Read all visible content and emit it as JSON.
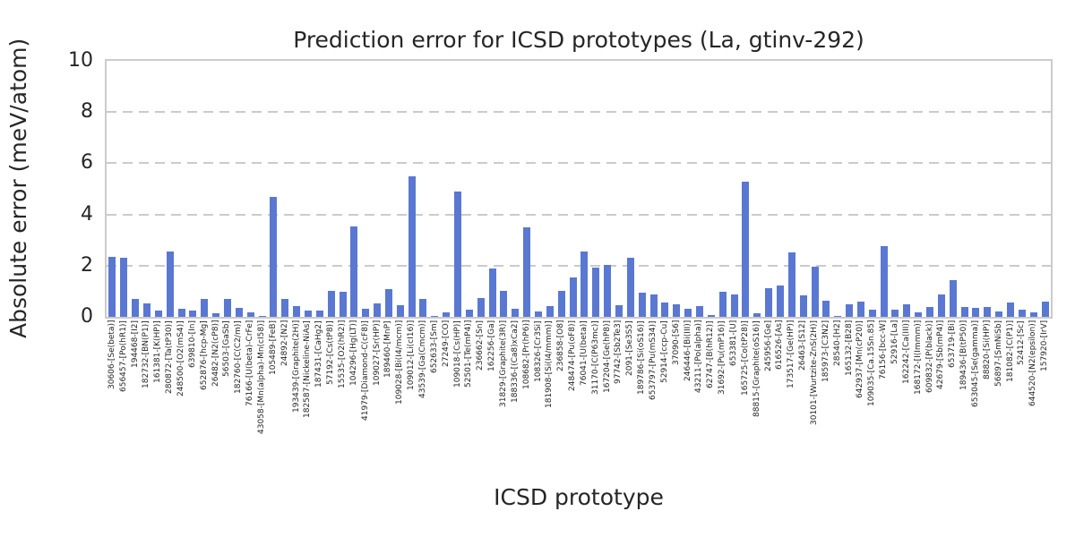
{
  "title": "Prediction error for ICSD prototypes (La, gtinv-292)",
  "colors": {
    "bar": "#5a78d2",
    "grid": "#cbcbcb",
    "spine": "#cbcbcb",
    "text": "#262626"
  },
  "chart_data": {
    "type": "bar",
    "title": "Prediction error for ICSD prototypes (La, gtinv-292)",
    "xlabel": "ICSD prototype",
    "ylabel": "Absolute error (meV/atom)",
    "ylim": [
      0,
      10
    ],
    "yticks": [
      0,
      2,
      4,
      6,
      8,
      10
    ],
    "grid": "horizontal-dashed",
    "legend": "none",
    "bar_color": "#5a78d2",
    "categories": [
      "30606-[Se(beta)]",
      "656457-[Po(hR1)]",
      "194468-[I2]",
      "182732-[BN(P1)]",
      "161381-[K(HP)]",
      "280872-[Ta(tP30)]",
      "248500-[O2(mS4)]",
      "639810-[In]",
      "652876-[hcp-Mg]",
      "26482-[N2(cP8)]",
      "56503-[GaSb]",
      "182760-[C(C2/m)]",
      "76166-[U(beta)-CrFe]",
      "43058-[Mn(alpha)-Mn(cI58)]",
      "105489-[FeB]",
      "24892-[N2]",
      "193439-[Graphite(2H)]",
      "182587-[Nickeline-NiAs]",
      "187431-[CaHg2]",
      "57192-[Cs(tP8)]",
      "15535-[O2(hR2)]",
      "104296-[Hg(LT)]",
      "41979-[Diamond-C(cF8)]",
      "109027-[Sr(HP)]",
      "189460-[MnP]",
      "109028-[Bi(I4/mcm)]",
      "109012-[Li(cI16)]",
      "43539-[Ga(Cmcm)]",
      "652633-[Sm]",
      "27249-[CO]",
      "109018-[Cs(HP)]",
      "52501-[Te(mP4)]",
      "236662-[Sn]",
      "162256-[Ga]",
      "31829-[Graphite(3R)]",
      "188336-[(Ca8)xCa2]",
      "108682-[Pr(hP6)]",
      "108326-[Cr3Si]",
      "181908-[Si(I4/mmm)]",
      "236858-[O8]",
      "248474-[Pu(oF8)]",
      "76041-[U(beta)]",
      "31170-[C(P63mc)]",
      "167204-[Ge(hP8)]",
      "97742-[Sb2Te3]",
      "2091-[Se3S5]",
      "189786-[Si(oS16)]",
      "653797-[Pu(mS34)]",
      "52914-[ccp-Cu]",
      "37090-[S6]",
      "246446-[Bi(III)]",
      "43211-[Po(alpha)]",
      "62747-[B(hR12)]",
      "31692-[Pu(mP16)]",
      "653381-[U]",
      "165725-[Co(tP28)]",
      "88815-[Graphite(oS16)]",
      "245956-[Ge]",
      "616526-[As]",
      "173517-[Ge(HP)]",
      "26463-[S12]",
      "30101-[Wurtzite-ZnS(2H)]",
      "185973-[C3N2]",
      "28540-[H2]",
      "165132-[B28]",
      "642937-[Mn(cP20)]",
      "109035-[Ca.15Sn.85]",
      "76156-[bcc-W]",
      "52916-[La]",
      "162242-[Ca(III)]",
      "168172-[I(Immm)]",
      "609832-[P(black)]",
      "42679-[Sb(mP4)]",
      "653719-[Bi]",
      "189436-[B(tP50)]",
      "653045-[Se(gamma)]",
      "88820-[Si(HP)]",
      "56897-[SmNiSb]",
      "181082-[C(P1)]",
      "52412-[Sc]",
      "644520-[N2(epsilon)]",
      "157920-[IrV]"
    ],
    "values": [
      2.36,
      2.31,
      0.7,
      0.53,
      0.25,
      2.57,
      0.31,
      0.24,
      0.71,
      0.13,
      0.71,
      0.36,
      0.16,
      0.02,
      4.7,
      0.7,
      0.43,
      0.26,
      0.23,
      1.01,
      0.98,
      3.54,
      0.33,
      0.52,
      1.1,
      0.46,
      5.5,
      0.7,
      0.02,
      0.16,
      4.91,
      0.29,
      0.72,
      1.88,
      1.01,
      0.31,
      3.51,
      0.21,
      0.41,
      1.02,
      1.53,
      2.57,
      1.92,
      2.03,
      0.46,
      2.31,
      0.95,
      0.89,
      0.57,
      0.5,
      0.3,
      0.42,
      0.07,
      0.97,
      0.86,
      5.27,
      0.13,
      1.12,
      1.24,
      2.51,
      0.83,
      1.97,
      0.62,
      0.02,
      0.49,
      0.61,
      0.27,
      2.75,
      0.27,
      0.49,
      0.17,
      0.37,
      0.89,
      1.43,
      0.39,
      0.34,
      0.38,
      0.2,
      0.56,
      0.28,
      0.16,
      0.58
    ]
  }
}
